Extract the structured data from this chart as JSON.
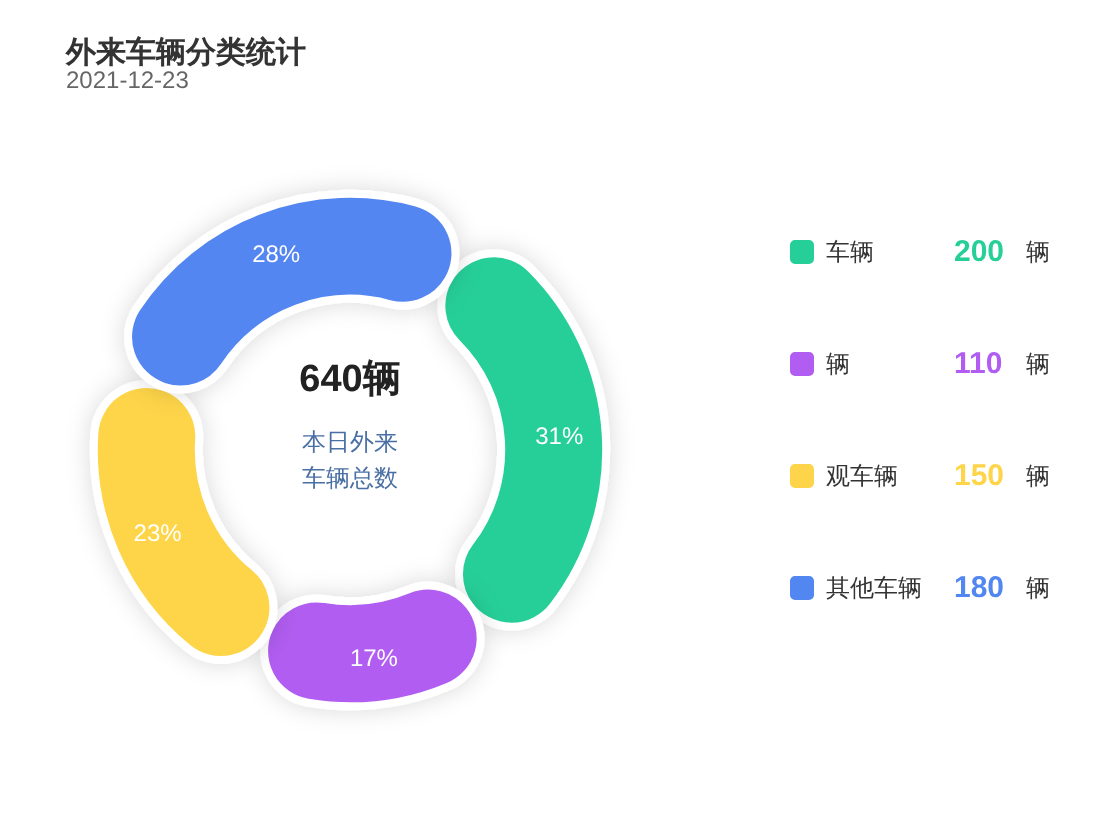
{
  "chart_data": {
    "type": "donut",
    "title": "外来车辆分类统计",
    "subtitle": "2021-12-23",
    "categories": [
      "车辆",
      "辆",
      "观车辆",
      "其他车辆"
    ],
    "values": [
      31.25,
      17.19,
      23.44,
      28.12
    ],
    "value_labels": [
      "31%",
      "17%",
      "23%",
      "28%"
    ],
    "colors": [
      "#27cf98",
      "#b15df1",
      "#fed54a",
      "#5286f1"
    ],
    "annotations": [
      "640辆",
      "本日外来车辆总数",
      "辆",
      "200",
      "110",
      "150",
      "180"
    ],
    "legend": "right"
  }
}
